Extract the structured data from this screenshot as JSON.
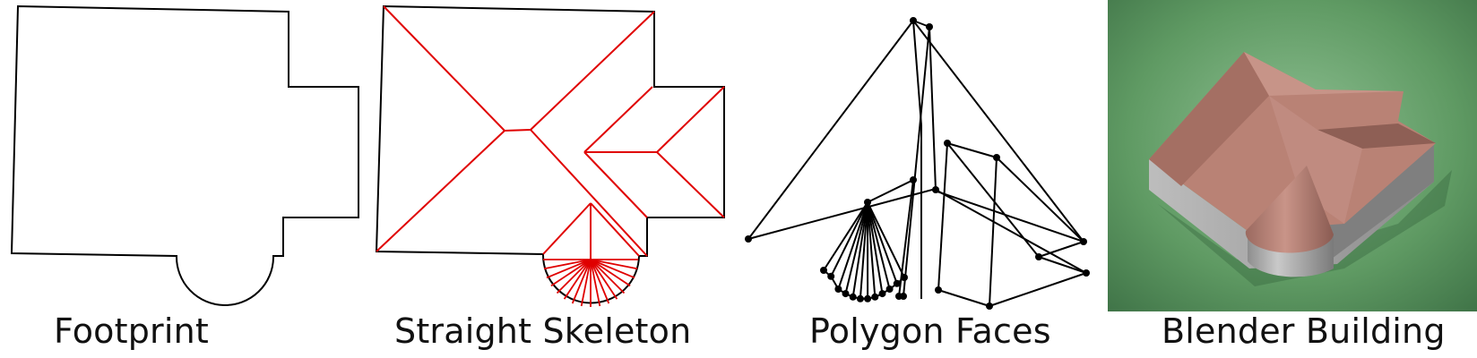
{
  "panels": [
    {
      "id": "footprint",
      "caption": "Footprint"
    },
    {
      "id": "skeleton",
      "caption": "Straight Skeleton"
    },
    {
      "id": "faces",
      "caption": "Polygon Faces"
    },
    {
      "id": "blender",
      "caption": "Blender Building"
    }
  ],
  "colors": {
    "outline": "#000000",
    "skeleton": "#e00000",
    "roof": "#b98275",
    "roof_dark": "#8e5f55",
    "walls": "#a7a7a7",
    "ground": "#5f9a63"
  }
}
